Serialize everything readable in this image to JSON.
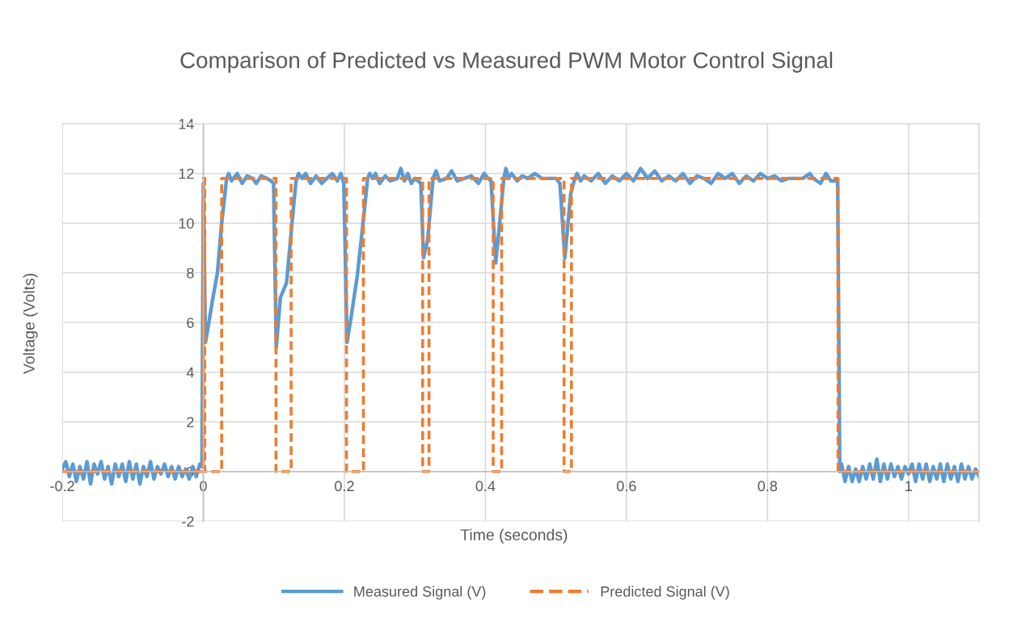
{
  "chart_data": {
    "type": "line",
    "title": "Comparison of Predicted vs Measured PWM Motor Control Signal",
    "xlabel": "Time (seconds)",
    "ylabel": "Voltage (Volts)",
    "xlim": [
      -0.2,
      1.1
    ],
    "xticks": [
      -0.2,
      0,
      0.2,
      0.4,
      0.6,
      0.8,
      1
    ],
    "ylim": [
      -2,
      14
    ],
    "yticks": [
      -2,
      0,
      2,
      4,
      6,
      8,
      10,
      12,
      14
    ],
    "grid": true,
    "legend": "bottom",
    "series": [
      {
        "name": "Measured Signal (V)",
        "color": "#5b9bd5",
        "line_style": "solid",
        "x": [
          -0.2,
          -0.195,
          -0.19,
          -0.185,
          -0.18,
          -0.175,
          -0.17,
          -0.165,
          -0.16,
          -0.155,
          -0.15,
          -0.145,
          -0.14,
          -0.135,
          -0.13,
          -0.125,
          -0.12,
          -0.115,
          -0.11,
          -0.105,
          -0.1,
          -0.095,
          -0.09,
          -0.085,
          -0.08,
          -0.075,
          -0.07,
          -0.065,
          -0.06,
          -0.055,
          -0.05,
          -0.045,
          -0.04,
          -0.035,
          -0.03,
          -0.025,
          -0.02,
          -0.015,
          -0.01,
          -0.005,
          -0.002,
          0,
          0.003,
          0.0067,
          0.013,
          0.02,
          0.026,
          0.033,
          0.036,
          0.04,
          0.048,
          0.055,
          0.062,
          0.07,
          0.075,
          0.082,
          0.09,
          0.096,
          0.0996,
          0.1034,
          0.1092,
          0.118,
          0.1264,
          0.1314,
          0.135,
          0.14,
          0.145,
          0.152,
          0.16,
          0.168,
          0.175,
          0.183,
          0.19,
          0.195,
          0.1992,
          0.2038,
          0.21,
          0.2184,
          0.2268,
          0.233,
          0.236,
          0.24,
          0.244,
          0.25,
          0.258,
          0.265,
          0.275,
          0.28,
          0.285,
          0.29,
          0.295,
          0.3,
          0.3084,
          0.3122,
          0.318,
          0.3257,
          0.33,
          0.335,
          0.345,
          0.352,
          0.36,
          0.37,
          0.38,
          0.39,
          0.398,
          0.404,
          0.408,
          0.4146,
          0.4195,
          0.4261,
          0.429,
          0.433,
          0.437,
          0.445,
          0.452,
          0.46,
          0.47,
          0.48,
          0.5,
          0.5057,
          0.5126,
          0.521,
          0.5268,
          0.53,
          0.535,
          0.54,
          0.55,
          0.56,
          0.57,
          0.58,
          0.59,
          0.6,
          0.61,
          0.62,
          0.63,
          0.64,
          0.65,
          0.66,
          0.67,
          0.68,
          0.69,
          0.7,
          0.71,
          0.72,
          0.73,
          0.74,
          0.75,
          0.76,
          0.77,
          0.78,
          0.79,
          0.8,
          0.81,
          0.82,
          0.83,
          0.84,
          0.85,
          0.86,
          0.865,
          0.875,
          0.883,
          0.89,
          0.8995,
          0.9025,
          0.905,
          0.91,
          0.915,
          0.92,
          0.925,
          0.93,
          0.935,
          0.94,
          0.945,
          0.95,
          0.955,
          0.96,
          0.965,
          0.97,
          0.975,
          0.98,
          0.985,
          0.99,
          0.995,
          1.0,
          1.005,
          1.01,
          1.015,
          1.02,
          1.025,
          1.03,
          1.035,
          1.04,
          1.045,
          1.05,
          1.055,
          1.06,
          1.065,
          1.07,
          1.075,
          1.08,
          1.085,
          1.09,
          1.095,
          1.1
        ],
        "values": [
          0.1,
          0.4,
          -0.2,
          0.3,
          -0.4,
          0.2,
          -0.3,
          0.4,
          -0.5,
          0.3,
          -0.1,
          0.4,
          -0.3,
          0.2,
          -0.5,
          0.3,
          -0.2,
          0.3,
          -0.4,
          0.4,
          -0.3,
          0.3,
          -0.5,
          0.2,
          -0.2,
          0.4,
          -0.3,
          0.2,
          -0.1,
          0.3,
          -0.2,
          0.2,
          -0.3,
          0.2,
          -0.2,
          0.1,
          -0.3,
          0.2,
          -0.2,
          0.3,
          0.2,
          11.6,
          5.2,
          5.8,
          6.9,
          8.0,
          10.0,
          11.8,
          12.0,
          11.7,
          12.0,
          11.6,
          11.9,
          11.8,
          11.6,
          11.9,
          11.8,
          11.7,
          11.6,
          5.0,
          7.0,
          7.6,
          10.2,
          11.7,
          12.0,
          11.8,
          12.0,
          11.6,
          11.9,
          11.6,
          11.8,
          12.0,
          11.7,
          12.0,
          11.6,
          5.2,
          6.3,
          7.9,
          10.1,
          11.8,
          12.0,
          11.8,
          12.0,
          11.6,
          11.9,
          11.7,
          11.8,
          12.2,
          11.7,
          12.0,
          11.6,
          11.8,
          11.6,
          8.6,
          9.3,
          11.8,
          12.1,
          11.7,
          11.8,
          12.1,
          11.7,
          11.8,
          11.9,
          11.6,
          12.0,
          11.8,
          11.7,
          8.4,
          9.8,
          11.8,
          12.2,
          11.8,
          12.0,
          11.7,
          11.9,
          11.8,
          12.0,
          11.8,
          11.8,
          11.6,
          8.6,
          11.2,
          11.8,
          12.0,
          11.7,
          11.9,
          11.7,
          12.0,
          11.6,
          11.9,
          11.7,
          12.0,
          11.7,
          12.2,
          11.8,
          12.1,
          11.7,
          11.9,
          11.7,
          12.0,
          11.6,
          11.9,
          11.8,
          11.6,
          12.0,
          11.8,
          12.0,
          11.6,
          11.9,
          11.7,
          12.0,
          11.8,
          11.9,
          11.7,
          11.8,
          11.8,
          11.8,
          12.0,
          11.8,
          11.6,
          12.0,
          11.7,
          11.7,
          0.0,
          0.3,
          -0.4,
          0.2,
          -0.4,
          0.1,
          -0.4,
          0.2,
          -0.3,
          0.3,
          -0.3,
          0.5,
          -0.4,
          0.3,
          -0.3,
          0.3,
          -0.2,
          0.2,
          -0.3,
          0.2,
          -0.1,
          0.3,
          -0.4,
          0.3,
          -0.3,
          0.3,
          -0.4,
          0.2,
          -0.3,
          0.3,
          -0.4,
          0.3,
          -0.3,
          0.2,
          -0.4,
          0.3,
          -0.3,
          0.2,
          -0.3,
          0.1,
          -0.2
        ]
      },
      {
        "name": "Predicted Signal (V)",
        "color": "#ed7d31",
        "line_style": "dashed",
        "x": [
          -0.2,
          0,
          0,
          0.002,
          0.002,
          0.026,
          0.026,
          0.103,
          0.103,
          0.1245,
          0.1245,
          0.203,
          0.203,
          0.227,
          0.227,
          0.311,
          0.311,
          0.32,
          0.32,
          0.411,
          0.411,
          0.423,
          0.423,
          0.5115,
          0.5115,
          0.522,
          0.522,
          0.9,
          0.9,
          1.1
        ],
        "values": [
          0,
          0,
          11.8,
          11.8,
          0,
          0,
          11.8,
          11.8,
          0,
          0,
          11.8,
          11.8,
          0,
          0,
          11.8,
          11.8,
          0,
          0,
          11.8,
          11.8,
          0,
          0,
          11.8,
          11.8,
          0,
          0,
          11.8,
          11.8,
          0,
          0
        ]
      }
    ]
  }
}
